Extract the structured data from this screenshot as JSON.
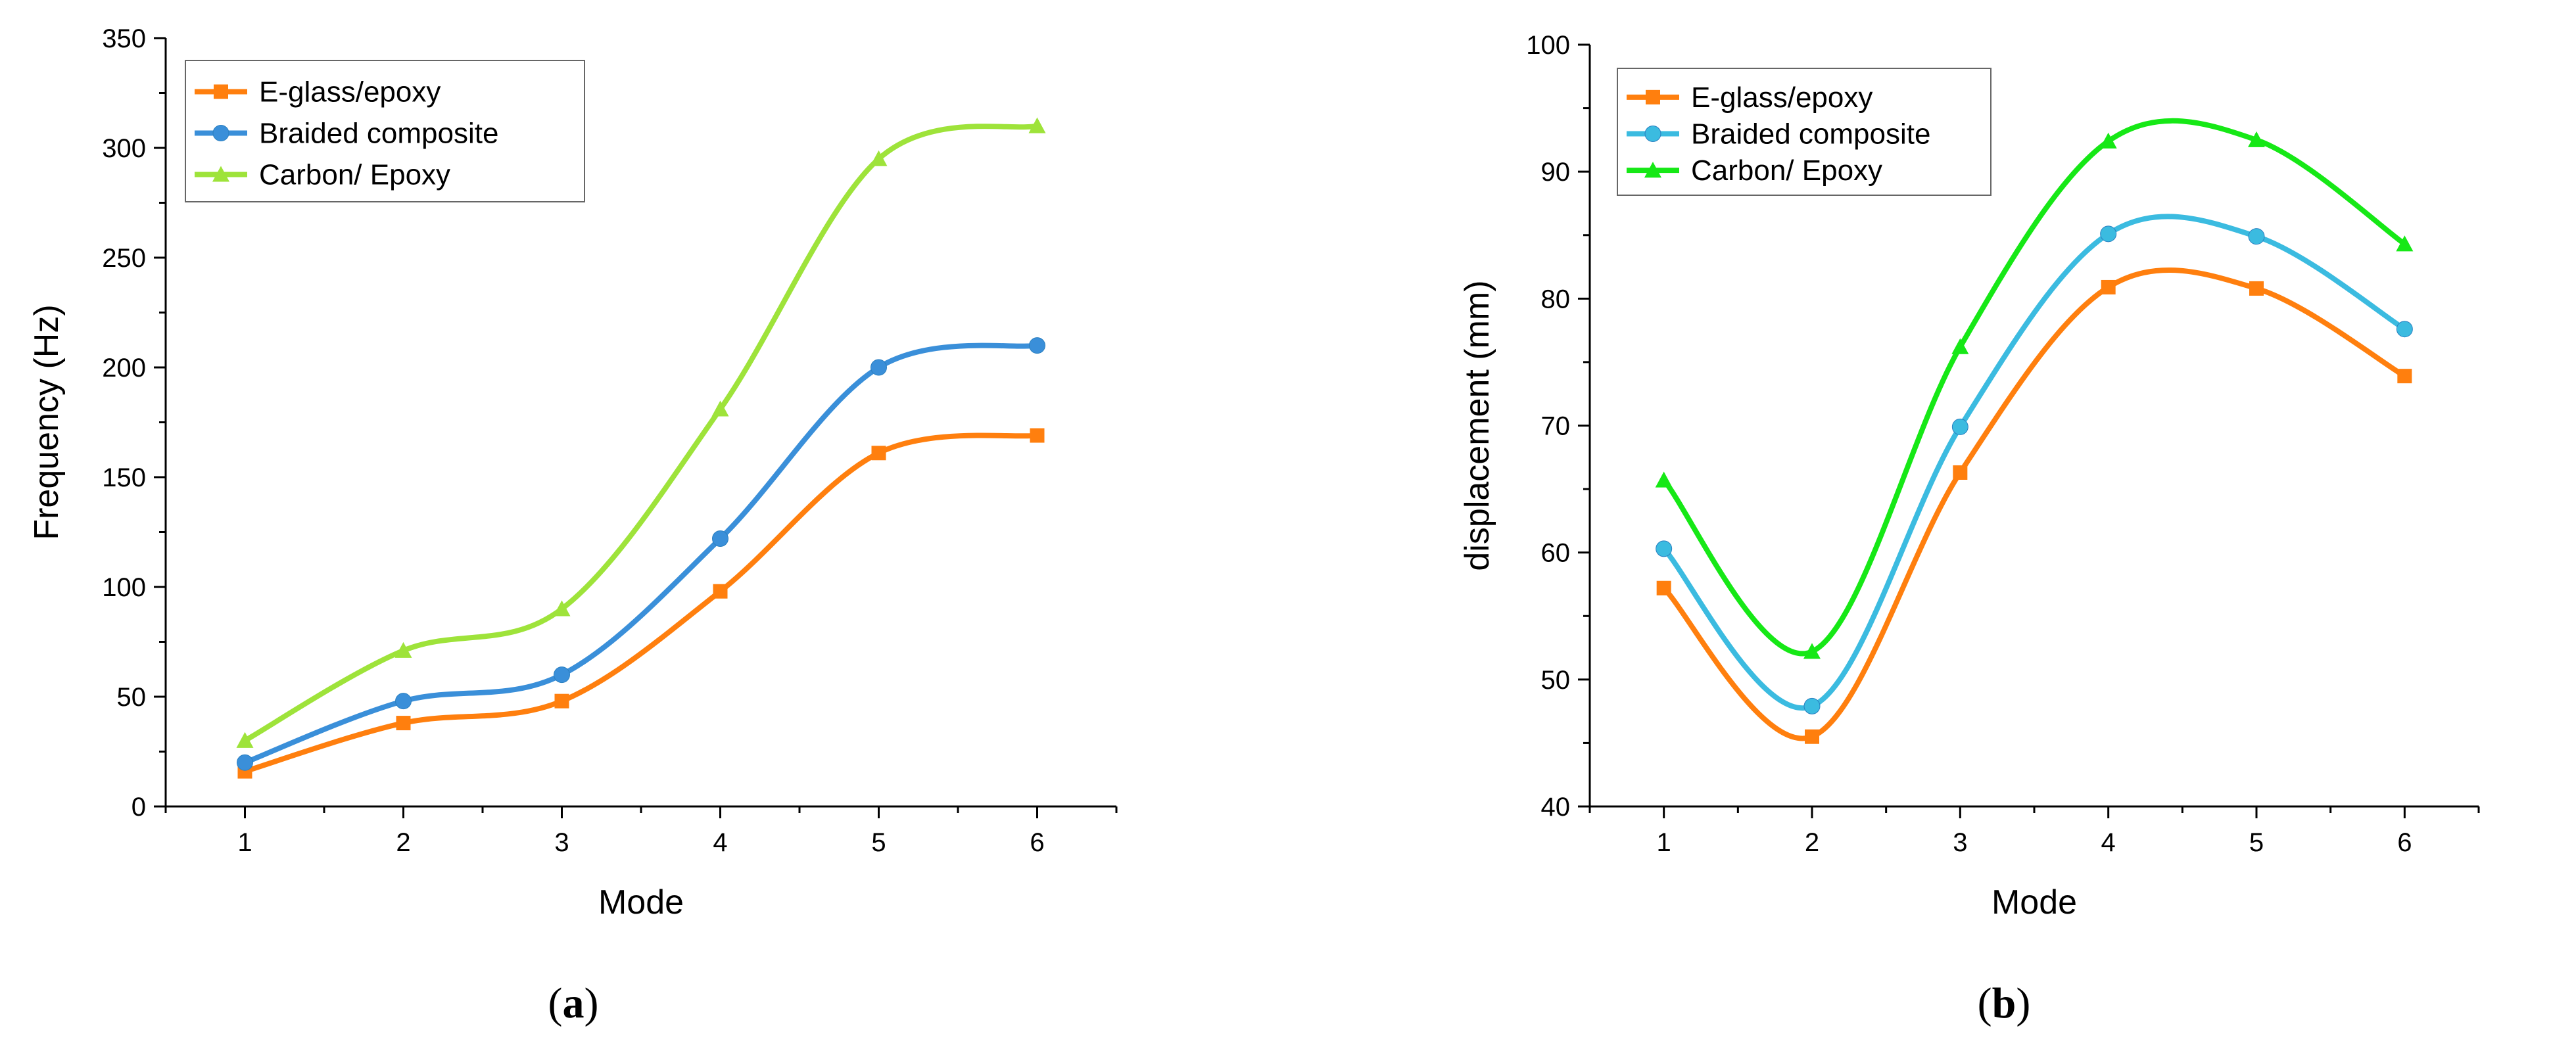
{
  "chart_data": [
    {
      "type": "line",
      "caption_letter": "a",
      "title": "",
      "xlabel": "Mode",
      "ylabel": "Frequency (Hz)",
      "x": [
        1,
        2,
        3,
        4,
        5,
        6
      ],
      "xlim": [
        0.5,
        6.5
      ],
      "ylim": [
        0,
        350
      ],
      "xticks": [
        1,
        2,
        3,
        4,
        5,
        6
      ],
      "yticks": [
        0,
        50,
        100,
        150,
        200,
        250,
        300,
        350
      ],
      "grid": false,
      "legend_position": "top-left",
      "series": [
        {
          "name": "E-glass/epoxy",
          "color": "#ff7f0e",
          "marker": "square",
          "values": [
            16,
            38,
            48,
            98,
            161,
            169
          ]
        },
        {
          "name": "Braided composite",
          "color": "#3a8fd9",
          "marker": "circle",
          "values": [
            20,
            48,
            60,
            122,
            200,
            210
          ]
        },
        {
          "name": "Carbon/ Epoxy",
          "color": "#9ee33a",
          "marker": "triangle",
          "values": [
            30,
            71,
            90,
            181,
            295,
            310
          ]
        }
      ]
    },
    {
      "type": "line",
      "caption_letter": "b",
      "title": "",
      "xlabel": "Mode",
      "ylabel": "displacement (mm)",
      "x": [
        1,
        2,
        3,
        4,
        5,
        6
      ],
      "xlim": [
        0.5,
        6.5
      ],
      "ylim": [
        40,
        100
      ],
      "xticks": [
        1,
        2,
        3,
        4,
        5,
        6
      ],
      "yticks": [
        40,
        50,
        60,
        70,
        80,
        90,
        100
      ],
      "grid": false,
      "legend_position": "top-left",
      "series": [
        {
          "name": "E-glass/epoxy",
          "color": "#ff7f0e",
          "marker": "square",
          "values": [
            57.2,
            45.5,
            66.3,
            80.9,
            80.8,
            73.9
          ]
        },
        {
          "name": "Braided composite",
          "color": "#3bbbe0",
          "marker": "circle",
          "values": [
            60.3,
            47.9,
            69.9,
            85.1,
            84.9,
            77.6
          ]
        },
        {
          "name": "Carbon/ Epoxy",
          "color": "#16e816",
          "marker": "triangle",
          "values": [
            65.7,
            52.2,
            76.2,
            92.4,
            92.5,
            84.3
          ]
        }
      ]
    }
  ]
}
